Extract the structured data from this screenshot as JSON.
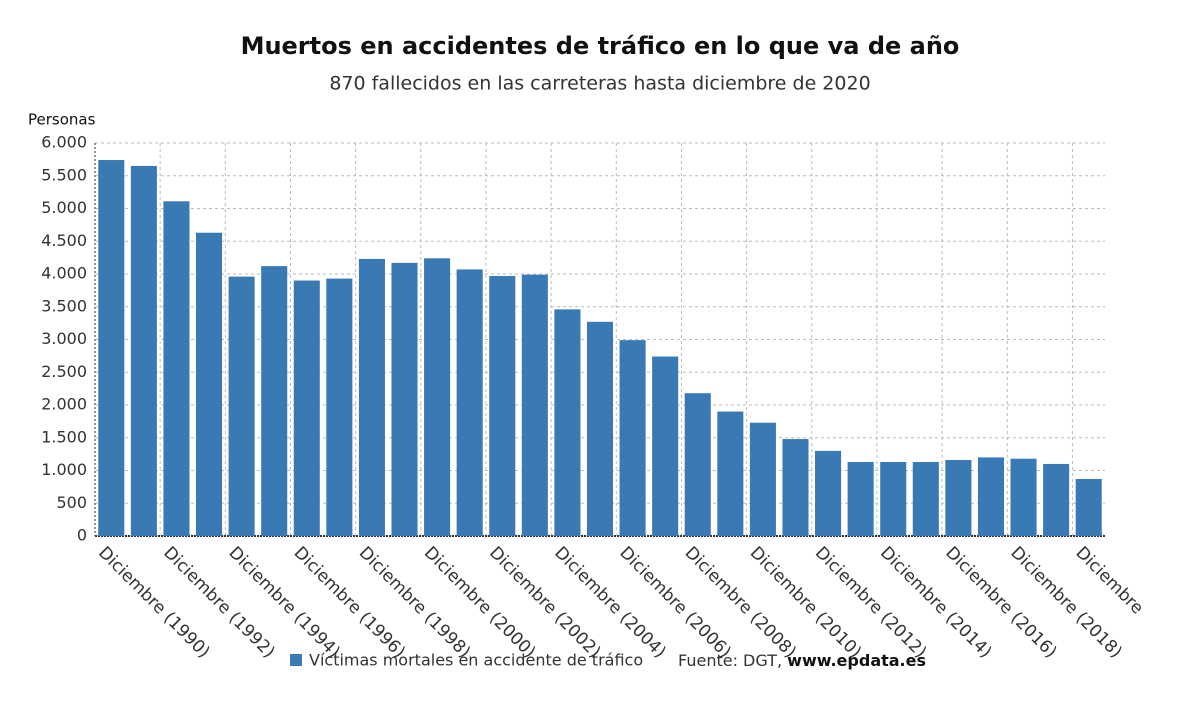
{
  "chart_data": {
    "type": "bar",
    "title": "Muertos en accidentes de tráfico en lo que va de año",
    "subtitle": "870 fallecidos en las carreteras hasta diciembre de 2020",
    "y_label": "Personas",
    "categories": [
      "Diciembre (1990)",
      null,
      "Diciembre (1992)",
      null,
      "Diciembre (1994)",
      null,
      "Diciembre (1996)",
      null,
      "Diciembre (1998)",
      null,
      "Diciembre (2000)",
      null,
      "Diciembre (2002)",
      null,
      "Diciembre (2004)",
      null,
      "Diciembre (2006)",
      null,
      "Diciembre (2008)",
      null,
      "Diciembre (2010)",
      null,
      "Diciembre (2012)",
      null,
      "Diciembre (2014)",
      null,
      "Diciembre (2016)",
      null,
      "Diciembre (2018)",
      null,
      "Diciembre"
    ],
    "series": [
      {
        "name": "Víctimas mortales en accidente de tráfico",
        "color": "#3a7ab4",
        "values": [
          5740,
          5650,
          5110,
          4630,
          3960,
          4120,
          3900,
          3930,
          4230,
          4170,
          4240,
          4070,
          3970,
          3990,
          3460,
          3270,
          2990,
          2740,
          2180,
          1900,
          1730,
          1480,
          1300,
          1130,
          1130,
          1130,
          1160,
          1200,
          1180,
          1100,
          870
        ]
      }
    ],
    "ylim": [
      0,
      6000
    ],
    "yticks": [
      0,
      500,
      {
        "value": 1000,
        "label": "1.000"
      },
      {
        "value": 1500,
        "label": "1.500"
      },
      {
        "value": 2000,
        "label": "2.000"
      },
      {
        "value": 2500,
        "label": "2.500"
      },
      {
        "value": 3000,
        "label": "3.000"
      },
      {
        "value": 3500,
        "label": "3.500"
      },
      {
        "value": 4000,
        "label": "4.000"
      },
      {
        "value": 4500,
        "label": "4.500"
      },
      {
        "value": 5000,
        "label": "5.000"
      },
      {
        "value": 5500,
        "label": "5.500"
      },
      {
        "value": 6000,
        "label": "6.000"
      }
    ],
    "grid": true,
    "source_prefix": "Fuente: DGT,",
    "source_site": "www.epdata.es"
  }
}
